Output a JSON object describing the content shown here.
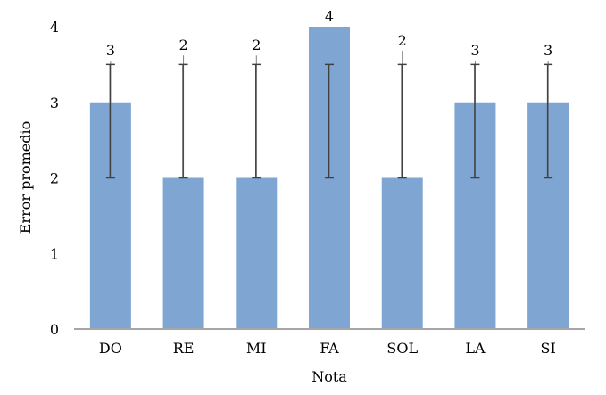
{
  "chart_data": {
    "type": "bar",
    "categories": [
      "DO",
      "RE",
      "MI",
      "FA",
      "SOL",
      "LA",
      "SI"
    ],
    "values": [
      3,
      2,
      2,
      4,
      2,
      3,
      3
    ],
    "data_labels": [
      "3",
      "2",
      "2",
      "4",
      "2",
      "3",
      "3"
    ],
    "error_bars": [
      [
        2,
        3.5
      ],
      [
        2,
        3.5
      ],
      [
        2,
        3.5
      ],
      [
        2,
        3.5
      ],
      [
        2,
        3.5
      ],
      [
        2,
        3.5
      ],
      [
        2,
        3.5
      ]
    ],
    "error_whisker_top": [
      3.55,
      3.62,
      3.62,
      null,
      3.68,
      3.55,
      3.55
    ],
    "xlabel": "Nota",
    "ylabel": "Error promedio",
    "ylim": [
      0,
      4
    ],
    "yticks": [
      "0",
      "1",
      "2",
      "3",
      "4"
    ],
    "grid": false,
    "colors": {
      "bar": "#7fa6d2",
      "axis": "#a6a6a6",
      "error_bar": "#404040",
      "whisker": "#7f7f7f"
    }
  }
}
